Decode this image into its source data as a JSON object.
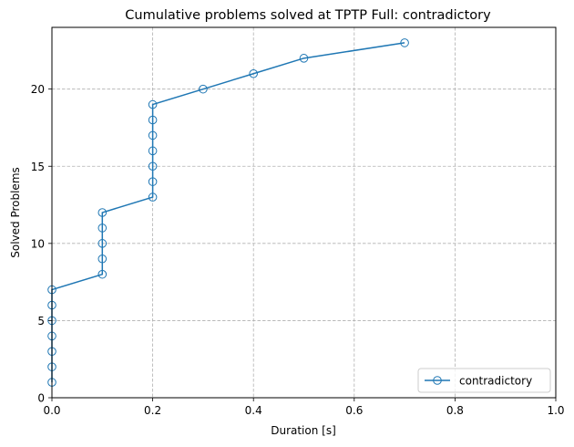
{
  "chart_data": {
    "type": "line",
    "title": "Cumulative problems solved at TPTP Full: contradictory",
    "xlabel": "Duration [s]",
    "ylabel": "Solved Problems",
    "xlim": [
      0,
      1.0
    ],
    "ylim": [
      0,
      24
    ],
    "xticks": [
      0.0,
      0.2,
      0.4,
      0.6,
      0.8,
      1.0
    ],
    "xtick_labels": [
      "0.0",
      "0.2",
      "0.4",
      "0.6",
      "0.8",
      "1.0"
    ],
    "yticks": [
      0,
      5,
      10,
      15,
      20
    ],
    "ytick_labels": [
      "0",
      "5",
      "10",
      "15",
      "20"
    ],
    "grid": true,
    "legend_position": "lower-right",
    "series": [
      {
        "name": "contradictory",
        "color": "#1f77b4",
        "marker": "open-circle",
        "x": [
          0,
          0,
          0,
          0,
          0,
          0,
          0,
          0.1,
          0.1,
          0.1,
          0.1,
          0.1,
          0.2,
          0.2,
          0.2,
          0.2,
          0.2,
          0.2,
          0.2,
          0.3,
          0.4,
          0.5,
          0.7
        ],
        "y": [
          1,
          2,
          3,
          4,
          5,
          6,
          7,
          8,
          9,
          10,
          11,
          12,
          13,
          14,
          15,
          16,
          17,
          18,
          19,
          20,
          21,
          22,
          23
        ]
      }
    ]
  }
}
